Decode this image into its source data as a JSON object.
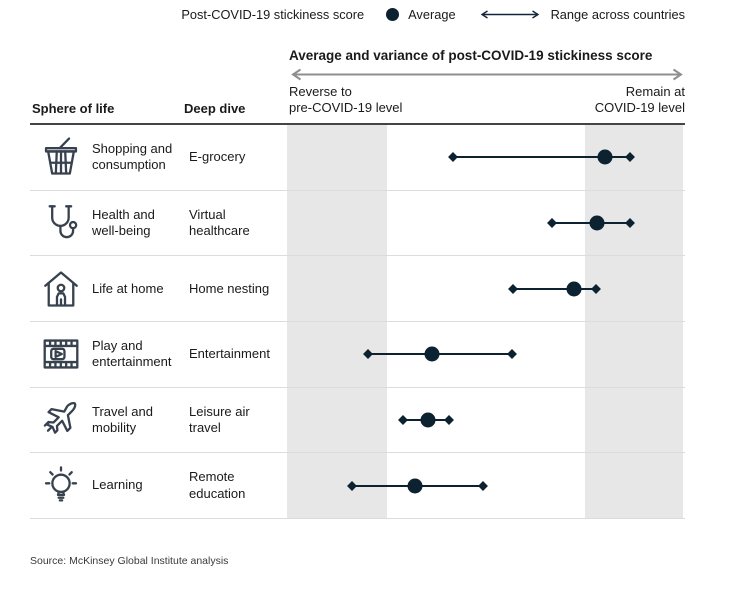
{
  "legend": {
    "score_label": "Post-COVID-19 stickiness score",
    "average_label": "Average",
    "range_label": "Range across countries"
  },
  "header": {
    "title": "Average and variance of post-COVID-19 stickiness score",
    "axis_left_line1": "Reverse to",
    "axis_left_line2": "pre-COVID-19 level",
    "axis_right_line1": "Remain at",
    "axis_right_line2": "COVID-19 level"
  },
  "columns": {
    "sphere": "Sphere of life",
    "deep_dive": "Deep dive"
  },
  "rows": [
    {
      "icon": "shopping-basket",
      "sphere": "Shopping and consumption",
      "deep_dive": "E-grocery",
      "low": 0.414,
      "avg": 0.798,
      "high": 0.861
    },
    {
      "icon": "stethoscope",
      "sphere": "Health and well-being",
      "deep_dive": "Virtual healthcare",
      "low": 0.664,
      "avg": 0.778,
      "high": 0.861
    },
    {
      "icon": "house-person",
      "sphere": "Life at home",
      "deep_dive": "Home nesting",
      "low": 0.566,
      "avg": 0.72,
      "high": 0.775
    },
    {
      "icon": "film-play",
      "sphere": "Play and entertainment",
      "deep_dive": "Entertainment",
      "low": 0.199,
      "avg": 0.361,
      "high": 0.563
    },
    {
      "icon": "airplane",
      "sphere": "Travel and mobility",
      "deep_dive": "Leisure air travel",
      "low": 0.288,
      "avg": 0.351,
      "high": 0.404
    },
    {
      "icon": "lightbulb",
      "sphere": "Learning",
      "deep_dive": "Remote education",
      "low": 0.159,
      "avg": 0.318,
      "high": 0.49
    }
  ],
  "chart_data": {
    "type": "scatter",
    "title": "Average and variance of post-COVID-19 stickiness score",
    "categories": [
      "E-grocery",
      "Virtual healthcare",
      "Home nesting",
      "Entertainment",
      "Leisure air travel",
      "Remote education"
    ],
    "series": [
      {
        "name": "Average",
        "values": [
          0.8,
          0.78,
          0.72,
          0.36,
          0.35,
          0.32
        ]
      },
      {
        "name": "Range min (countries)",
        "values": [
          0.41,
          0.66,
          0.57,
          0.2,
          0.29,
          0.16
        ]
      },
      {
        "name": "Range max (countries)",
        "values": [
          0.86,
          0.86,
          0.78,
          0.56,
          0.4,
          0.49
        ]
      }
    ],
    "x_axis": {
      "range": [
        0,
        1
      ],
      "label_left": "Reverse to pre-COVID-19 level",
      "label_right": "Remain at COVID-19 level",
      "shaded_bands": [
        [
          0,
          0.25
        ],
        [
          0.75,
          1.0
        ]
      ]
    },
    "legend_position": "top",
    "grid": false
  },
  "colors": {
    "marker": "#0c2231",
    "shaded_band": "#e7e7e7",
    "header_rule": "#454545",
    "row_rule": "#dcdcdc",
    "gray_arrow": "#8f8f8f"
  },
  "source": "Source: McKinsey Global Institute analysis"
}
